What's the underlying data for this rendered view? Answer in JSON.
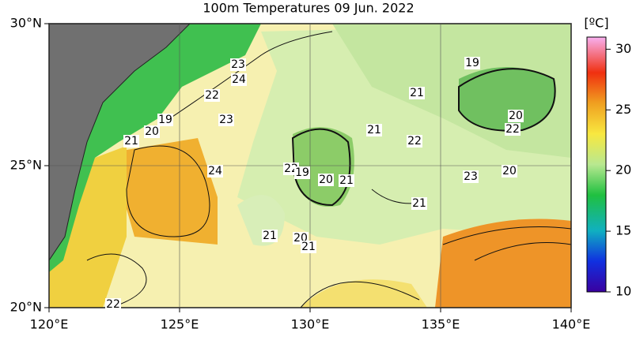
{
  "title": "100m Temperatures  09 Jun. 2022",
  "lat_axis": [
    {
      "value": 30,
      "label": "30°N"
    },
    {
      "value": 25,
      "label": "25°N"
    },
    {
      "value": 20,
      "label": "20°N"
    }
  ],
  "lon_axis": [
    {
      "value": 120,
      "label": "120°E"
    },
    {
      "value": 125,
      "label": "125°E"
    },
    {
      "value": 130,
      "label": "130°E"
    },
    {
      "value": 135,
      "label": "135°E"
    },
    {
      "value": 140,
      "label": "140°E"
    }
  ],
  "colorbar": {
    "unit": "[ºC]",
    "range": [
      10,
      31
    ],
    "ticks": [
      10,
      15,
      20,
      25,
      30
    ]
  },
  "contour_labels": [
    "23",
    "24",
    "22",
    "23",
    "19",
    "20",
    "21",
    "24",
    "22",
    "19",
    "20",
    "21",
    "21",
    "21",
    "22",
    "19",
    "20",
    "22",
    "23",
    "20",
    "21",
    "21",
    "20",
    "21",
    "22"
  ]
}
